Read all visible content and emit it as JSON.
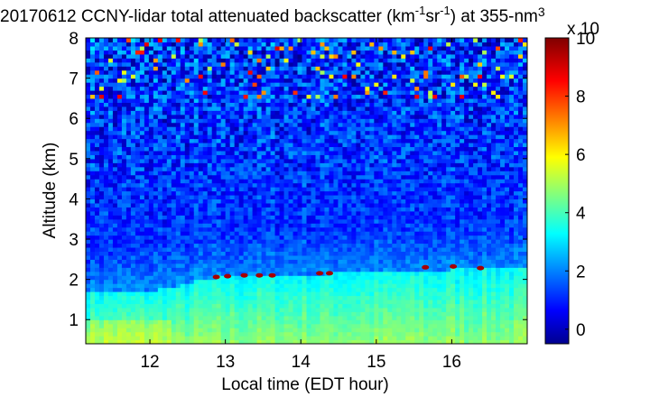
{
  "chart_data": {
    "type": "heatmap",
    "title_prefix": "20170612 CCNY-lidar total attenuated backscatter (km",
    "title_exp1": "-1",
    "title_mid": "sr",
    "title_exp2": "-1",
    "title_suffix": ") at 355-nm",
    "title_tail": "3",
    "xlabel": "Local time (EDT hour)",
    "ylabel": "Altitude (km)",
    "xlim": [
      11.15,
      17.0
    ],
    "ylim": [
      0.4,
      8.0
    ],
    "x_ticks": [
      12,
      13,
      14,
      15,
      16
    ],
    "y_ticks": [
      1,
      2,
      3,
      4,
      5,
      6,
      7,
      8
    ],
    "colorbar": {
      "range": [
        -0.5,
        10
      ],
      "ticks": [
        0,
        2,
        4,
        6,
        8,
        10
      ],
      "multiplier_label": "x 10",
      "colormap": "jet"
    },
    "boundary_layer_top_km": [
      [
        11.2,
        1.68
      ],
      [
        11.6,
        1.7
      ],
      [
        12.0,
        1.72
      ],
      [
        12.3,
        1.8
      ],
      [
        12.6,
        1.95
      ],
      [
        12.9,
        2.05
      ],
      [
        13.2,
        2.08
      ],
      [
        13.6,
        2.1
      ],
      [
        14.0,
        2.12
      ],
      [
        14.4,
        2.15
      ],
      [
        14.8,
        2.18
      ],
      [
        15.2,
        2.2
      ],
      [
        15.6,
        2.22
      ],
      [
        16.0,
        2.25
      ],
      [
        16.4,
        2.26
      ],
      [
        16.9,
        2.28
      ]
    ],
    "cloud_hits": [
      {
        "time": 12.88,
        "alt_km": 2.06
      },
      {
        "time": 13.03,
        "alt_km": 2.08
      },
      {
        "time": 13.25,
        "alt_km": 2.1
      },
      {
        "time": 13.45,
        "alt_km": 2.1
      },
      {
        "time": 13.62,
        "alt_km": 2.1
      },
      {
        "time": 14.25,
        "alt_km": 2.15
      },
      {
        "time": 14.38,
        "alt_km": 2.15
      },
      {
        "time": 15.65,
        "alt_km": 2.3
      },
      {
        "time": 16.02,
        "alt_km": 2.32
      },
      {
        "time": 16.38,
        "alt_km": 2.28
      }
    ]
  }
}
